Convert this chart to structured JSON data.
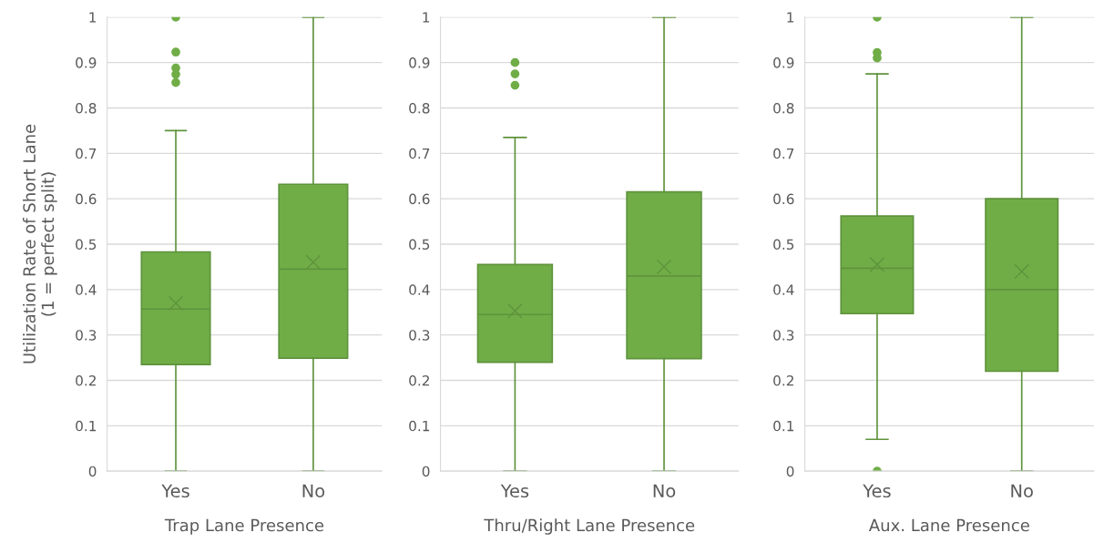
{
  "chart_data": [
    {
      "type": "box",
      "ylabel": "Utilization Rate of Short Lane\n(1 = perfect split)",
      "xlabel": "Trap Lane Presence",
      "categories": [
        "Yes",
        "No"
      ],
      "ylim": [
        0,
        1
      ],
      "yticks": [
        0,
        0.1,
        0.2,
        0.3,
        0.4,
        0.5,
        0.6,
        0.7,
        0.8,
        0.9,
        1
      ],
      "grid": "y",
      "series": [
        {
          "color": "#70ad47",
          "boxes": [
            {
              "low": 0,
              "q1": 0.235,
              "median": 0.357,
              "q3": 0.483,
              "high": 0.75,
              "mean": 0.37,
              "outliers": [
                1,
                0.923,
                0.888,
                0.874,
                0.856
              ]
            },
            {
              "low": 0,
              "q1": 0.249,
              "median": 0.445,
              "q3": 0.632,
              "high": 1,
              "mean": 0.46
            }
          ]
        }
      ]
    },
    {
      "type": "box",
      "xlabel": "Thru/Right Lane Presence",
      "categories": [
        "Yes",
        "No"
      ],
      "ylim": [
        0,
        1
      ],
      "yticks": [
        0,
        0.1,
        0.2,
        0.3,
        0.4,
        0.5,
        0.6,
        0.7,
        0.8,
        0.9,
        1
      ],
      "grid": "y",
      "series": [
        {
          "color": "#70ad47",
          "boxes": [
            {
              "low": 0,
              "q1": 0.24,
              "median": 0.345,
              "q3": 0.455,
              "high": 0.735,
              "mean": 0.353,
              "outliers": [
                0.9,
                0.875,
                0.85
              ]
            },
            {
              "low": 0,
              "q1": 0.248,
              "median": 0.43,
              "q3": 0.615,
              "high": 1,
              "mean": 0.45
            }
          ]
        }
      ]
    },
    {
      "type": "box",
      "xlabel": "Aux. Lane Presence",
      "categories": [
        "Yes",
        "No"
      ],
      "ylim": [
        0,
        1
      ],
      "yticks": [
        0,
        0.1,
        0.2,
        0.3,
        0.4,
        0.5,
        0.6,
        0.7,
        0.8,
        0.9,
        1
      ],
      "grid": "y",
      "series": [
        {
          "color": "#70ad47",
          "boxes": [
            {
              "low": 0.07,
              "q1": 0.347,
              "median": 0.447,
              "q3": 0.562,
              "high": 0.875,
              "mean": 0.455,
              "outliers": [
                1,
                0.922,
                0.91,
                0
              ]
            },
            {
              "low": 0,
              "q1": 0.22,
              "median": 0.4,
              "q3": 0.6,
              "high": 1,
              "mean": 0.44
            }
          ]
        }
      ]
    }
  ]
}
